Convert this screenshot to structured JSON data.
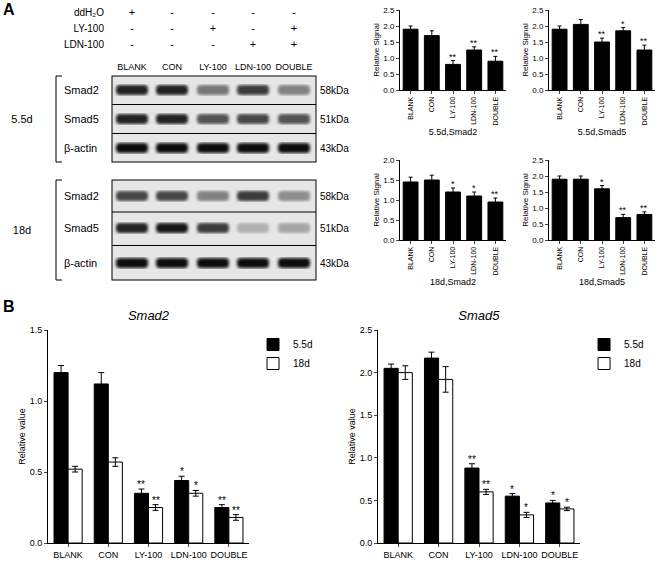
{
  "panel_labels": [
    "A",
    "B"
  ],
  "blot": {
    "treatments": [
      {
        "label": "ddH₂O",
        "signs": [
          "+",
          "-",
          "-",
          "-",
          "-"
        ]
      },
      {
        "label": "LY-100",
        "signs": [
          "-",
          "-",
          "+",
          "-",
          "+"
        ]
      },
      {
        "label": "LDN-100",
        "signs": [
          "-",
          "-",
          "-",
          "+",
          "+"
        ]
      }
    ],
    "lanes": [
      "BLANK",
      "CON",
      "LY-100",
      "LDN-100",
      "DOUBLE"
    ],
    "groups": [
      {
        "label": "5.5d",
        "rows": [
          {
            "label": "Smad2",
            "size": "58kDa",
            "intensity": [
              0.85,
              0.85,
              0.5,
              0.75,
              0.45
            ]
          },
          {
            "label": "Smad5",
            "size": "51kDa",
            "intensity": [
              0.85,
              0.85,
              0.65,
              0.7,
              0.65
            ]
          },
          {
            "label": "β-actin",
            "size": "43kDa",
            "intensity": [
              0.95,
              0.95,
              0.95,
              0.95,
              0.95
            ]
          }
        ]
      },
      {
        "label": "18d",
        "rows": [
          {
            "label": "Smad2",
            "size": "58kDa",
            "intensity": [
              0.7,
              0.7,
              0.45,
              0.75,
              0.4
            ]
          },
          {
            "label": "Smad5",
            "size": "51kDa",
            "intensity": [
              0.85,
              0.9,
              0.75,
              0.25,
              0.3
            ]
          },
          {
            "label": "β-actin",
            "size": "43kDa",
            "intensity": [
              0.95,
              0.95,
              0.95,
              0.95,
              0.95
            ]
          }
        ]
      }
    ]
  },
  "chart_data": [
    {
      "type": "bar",
      "title": "5.5d,Smad2",
      "y_label": "Relative Signal",
      "categories": [
        "BLANK",
        "CON",
        "LY-100",
        "LDN-100",
        "DOUBLE"
      ],
      "series": [
        {
          "color": "#000000",
          "values": [
            1.9,
            1.7,
            0.8,
            1.25,
            0.9
          ],
          "errors": [
            0.1,
            0.15,
            0.12,
            0.1,
            0.15
          ],
          "significance": [
            null,
            null,
            "**",
            "**",
            "**"
          ]
        }
      ],
      "ylim": [
        0,
        2.5
      ],
      "yticks": [
        {
          "value": 0,
          "label": "0.0"
        },
        0.5,
        {
          "value": 1,
          "label": "1.0"
        },
        1.5,
        {
          "value": 2,
          "label": "2.0"
        },
        2.5
      ],
      "grid": false
    },
    {
      "type": "bar",
      "title": "5.5d,Smad5",
      "y_label": "Relative Signal",
      "categories": [
        "BLANK",
        "CON",
        "LY-100",
        "LDN-100",
        "DOUBLE"
      ],
      "series": [
        {
          "color": "#000000",
          "values": [
            1.9,
            2.05,
            1.5,
            1.85,
            1.25
          ],
          "errors": [
            0.1,
            0.15,
            0.12,
            0.1,
            0.15
          ],
          "significance": [
            null,
            null,
            "**",
            "*",
            "**"
          ]
        }
      ],
      "ylim": [
        0,
        2.5
      ],
      "yticks": [
        {
          "value": 0,
          "label": "0.0"
        },
        0.5,
        {
          "value": 1,
          "label": "1.0"
        },
        1.5,
        {
          "value": 2,
          "label": "2.0"
        },
        2.5
      ],
      "grid": false
    },
    {
      "type": "bar",
      "title": "18d,Smad2",
      "y_label": "Relative Signal",
      "categories": [
        "BLANK",
        "CON",
        "LY-100",
        "LDN-100",
        "DOUBLE"
      ],
      "series": [
        {
          "color": "#000000",
          "values": [
            1.45,
            1.5,
            1.2,
            1.1,
            0.95
          ],
          "errors": [
            0.12,
            0.12,
            0.1,
            0.1,
            0.1
          ],
          "significance": [
            null,
            null,
            "*",
            "*",
            "**"
          ]
        }
      ],
      "ylim": [
        0,
        2
      ],
      "yticks": [
        {
          "value": 0,
          "label": "0.0"
        },
        0.5,
        {
          "value": 1,
          "label": "1.0"
        },
        1.5,
        {
          "value": 2,
          "label": "2.0"
        }
      ],
      "grid": false
    },
    {
      "type": "bar",
      "title": "18d,Smad5",
      "y_label": "Relative Signal",
      "categories": [
        "BLANK",
        "CON",
        "LY-100",
        "LDN-100",
        "DOUBLE"
      ],
      "series": [
        {
          "color": "#000000",
          "values": [
            1.9,
            1.9,
            1.6,
            0.7,
            0.8
          ],
          "errors": [
            0.1,
            0.1,
            0.1,
            0.1,
            0.08
          ],
          "significance": [
            null,
            null,
            "*",
            "**",
            "**"
          ]
        }
      ],
      "ylim": [
        0,
        2.5
      ],
      "yticks": [
        {
          "value": 0,
          "label": "0.0"
        },
        0.5,
        {
          "value": 1,
          "label": "1.0"
        },
        1.5,
        {
          "value": 2,
          "label": "2.0"
        },
        2.5
      ],
      "grid": false
    },
    {
      "type": "bar",
      "title": "Smad2",
      "y_label": "Relative value",
      "categories": [
        "BLANK",
        "CON",
        "LY-100",
        "LDN-100",
        "DOUBLE"
      ],
      "series": [
        {
          "name": "5.5d",
          "color": "#000000",
          "values": [
            1.2,
            1.12,
            0.35,
            0.44,
            0.25
          ],
          "errors": [
            0.05,
            0.08,
            0.03,
            0.03,
            0.02
          ],
          "significance": [
            null,
            null,
            "**",
            "*",
            "**"
          ]
        },
        {
          "name": "18d",
          "color": "#ffffff",
          "values": [
            0.52,
            0.57,
            0.25,
            0.35,
            0.18
          ],
          "errors": [
            0.02,
            0.03,
            0.02,
            0.02,
            0.02
          ],
          "significance": [
            null,
            null,
            "**",
            "*",
            "**"
          ]
        }
      ],
      "ylim": [
        0,
        1.5
      ],
      "yticks": [
        {
          "value": 0,
          "label": "0.0"
        },
        0.5,
        {
          "value": 1,
          "label": "1.0"
        },
        1.5
      ],
      "legend": "right",
      "grid": false
    },
    {
      "type": "bar",
      "title": "Smad5",
      "y_label": "Relative value",
      "categories": [
        "BLANK",
        "CON",
        "LY-100",
        "LDN-100",
        "DOUBLE"
      ],
      "series": [
        {
          "name": "5.5d",
          "color": "#000000",
          "values": [
            2.05,
            2.17,
            0.88,
            0.55,
            0.47
          ],
          "errors": [
            0.05,
            0.07,
            0.05,
            0.03,
            0.03
          ],
          "significance": [
            null,
            null,
            "**",
            "*",
            "*"
          ]
        },
        {
          "name": "18d",
          "color": "#ffffff",
          "values": [
            2.0,
            1.92,
            0.6,
            0.33,
            0.4
          ],
          "errors": [
            0.08,
            0.15,
            0.03,
            0.03,
            0.02
          ],
          "significance": [
            null,
            null,
            "**",
            "*",
            "*"
          ]
        }
      ],
      "ylim": [
        0,
        2.5
      ],
      "yticks": [
        {
          "value": 0,
          "label": "0.0"
        },
        0.5,
        {
          "value": 1,
          "label": "1.0"
        },
        1.5,
        {
          "value": 2,
          "label": "2.0"
        },
        2.5
      ],
      "legend": "right",
      "grid": false
    }
  ]
}
